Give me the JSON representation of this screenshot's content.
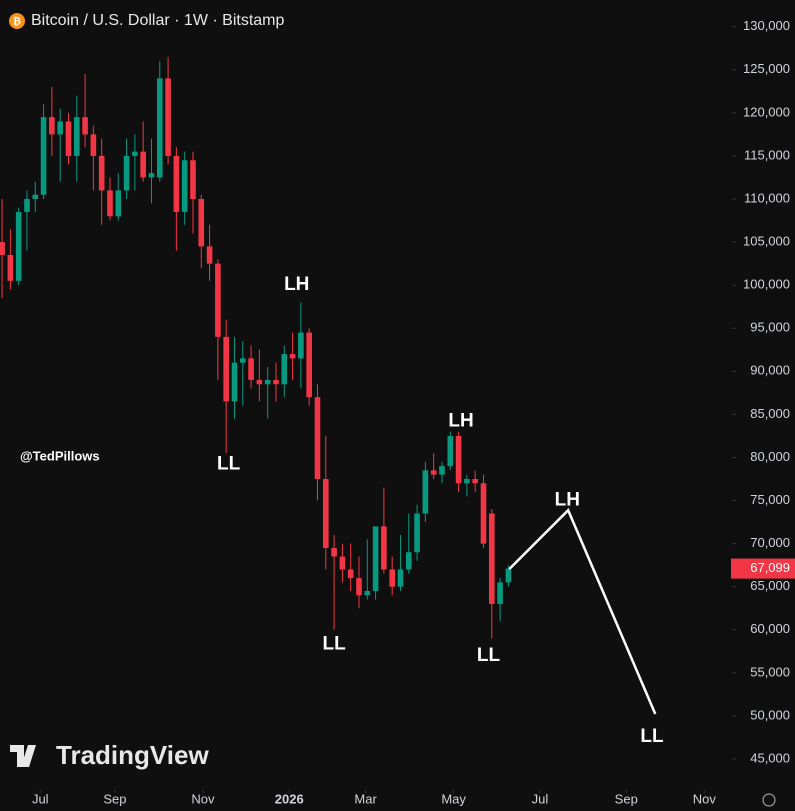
{
  "chart_data": {
    "type": "candlestick",
    "title": "Bitcoin / U.S. Dollar · 1W · Bitstamp",
    "watermark": "@TedPillows",
    "brand": "TradingView",
    "up_color": "#089981",
    "down_color": "#f23645",
    "x": [
      0,
      1,
      2,
      3,
      4,
      5,
      6,
      7,
      8,
      9,
      10,
      11,
      12,
      13,
      14,
      15,
      16,
      17,
      18,
      19,
      20,
      21,
      22,
      23,
      24,
      25,
      26,
      27,
      28,
      29,
      30,
      31,
      32,
      33,
      34,
      35,
      36,
      37,
      38,
      39,
      40,
      41,
      42,
      43,
      44,
      45,
      46,
      47,
      48,
      49,
      50,
      51,
      52,
      53,
      54,
      55,
      56,
      57,
      58,
      59,
      60,
      61
    ],
    "open": [
      105000,
      103500,
      100500,
      108500,
      110000,
      110500,
      119500,
      117500,
      119000,
      115000,
      119500,
      117500,
      115000,
      111000,
      108000,
      111000,
      115000,
      115500,
      112500,
      112500,
      124000,
      115000,
      108500,
      114500,
      110000,
      104500,
      102500,
      94000,
      86500,
      91000,
      91500,
      89000,
      88500,
      89000,
      88500,
      92000,
      91500,
      94500,
      87000,
      77500,
      69500,
      68500,
      67000,
      66000,
      64000,
      64500,
      72000,
      67000,
      65000,
      67000,
      69000,
      73500,
      78500,
      78000,
      79000,
      82500,
      77000,
      77500,
      77000,
      73500,
      63000,
      65500
    ],
    "high": [
      110000,
      106500,
      109000,
      111000,
      112000,
      121000,
      123000,
      120500,
      120000,
      122000,
      124500,
      118500,
      117000,
      112500,
      113000,
      117000,
      117500,
      119000,
      117000,
      126000,
      126500,
      116000,
      115500,
      115500,
      110500,
      107000,
      103000,
      96000,
      94000,
      93500,
      93000,
      92500,
      90500,
      91000,
      93000,
      94500,
      98000,
      95000,
      88500,
      82500,
      71000,
      70000,
      70000,
      68500,
      70500,
      72000,
      76500,
      68500,
      71000,
      73500,
      74500,
      79500,
      80500,
      79500,
      83000,
      83000,
      78000,
      78500,
      78000,
      74000,
      66000,
      67500
    ],
    "low": [
      98500,
      99500,
      100000,
      104000,
      108500,
      110000,
      115000,
      112000,
      114000,
      112000,
      116000,
      111000,
      107000,
      107500,
      107500,
      110000,
      111000,
      112000,
      109500,
      112000,
      114000,
      104000,
      107000,
      106000,
      102000,
      100500,
      89000,
      80500,
      84500,
      86000,
      88000,
      86500,
      84500,
      86500,
      87000,
      89000,
      88000,
      86000,
      75000,
      67000,
      60000,
      65500,
      64500,
      62500,
      63500,
      63500,
      66500,
      64000,
      64500,
      66500,
      68000,
      72500,
      77500,
      77000,
      78500,
      76000,
      75500,
      76000,
      69500,
      59000,
      61000,
      65000
    ],
    "close": [
      103500,
      100500,
      108500,
      110000,
      110500,
      119500,
      117500,
      119000,
      115000,
      119500,
      117500,
      115000,
      111000,
      108000,
      111000,
      115000,
      115500,
      112500,
      113000,
      124000,
      115000,
      108500,
      114500,
      110000,
      104500,
      102500,
      94000,
      86500,
      91000,
      91500,
      89000,
      88500,
      89000,
      88500,
      92000,
      91500,
      94500,
      87000,
      77500,
      69500,
      68500,
      67000,
      66000,
      64000,
      64500,
      72000,
      67000,
      65000,
      67000,
      69000,
      73500,
      78500,
      78000,
      79000,
      82500,
      77000,
      77500,
      77000,
      70000,
      63000,
      65500,
      67099
    ],
    "close_label": "67,099",
    "projection": {
      "x": [
        61.1,
        68.2,
        78.7
      ],
      "y": [
        67036,
        73878,
        50223
      ]
    },
    "annotations": [
      {
        "text": "LH",
        "x": 35.5,
        "y": 100000
      },
      {
        "text": "LL",
        "x": 27.3,
        "y": 79200
      },
      {
        "text": "LH",
        "x": 55.3,
        "y": 84200
      },
      {
        "text": "LL",
        "x": 40.0,
        "y": 58300
      },
      {
        "text": "LL",
        "x": 58.6,
        "y": 56950
      },
      {
        "text": "LH",
        "x": 68.1,
        "y": 75000
      },
      {
        "text": "LL",
        "x": 78.3,
        "y": 47550
      }
    ],
    "xlim": [
      -0.25,
      87.7
    ],
    "xticks": [
      {
        "value": 4.6,
        "label": "Jul"
      },
      {
        "value": 13.6,
        "label": "Sep"
      },
      {
        "value": 24.2,
        "label": "Nov"
      },
      {
        "value": 34.6,
        "label": "2026"
      },
      {
        "value": 43.8,
        "label": "Mar"
      },
      {
        "value": 54.4,
        "label": "May"
      },
      {
        "value": 64.8,
        "label": "Jul"
      },
      {
        "value": 75.2,
        "label": "Sep"
      },
      {
        "value": 84.6,
        "label": "Nov"
      }
    ],
    "ylim": [
      41400,
      133100
    ],
    "yticks": [
      {
        "value": 45000,
        "label": "45,000"
      },
      {
        "value": 50000,
        "label": "50,000"
      },
      {
        "value": 55000,
        "label": "55,000"
      },
      {
        "value": 60000,
        "label": "60,000"
      },
      {
        "value": 65000,
        "label": "65,000"
      },
      {
        "value": 70000,
        "label": "70,000"
      },
      {
        "value": 75000,
        "label": "75,000"
      },
      {
        "value": 80000,
        "label": "80,000"
      },
      {
        "value": 85000,
        "label": "85,000"
      },
      {
        "value": 90000,
        "label": "90,000"
      },
      {
        "value": 95000,
        "label": "95,000"
      },
      {
        "value": 100000,
        "label": "100,000"
      },
      {
        "value": 105000,
        "label": "105,000"
      },
      {
        "value": 110000,
        "label": "110,000"
      },
      {
        "value": 115000,
        "label": "115,000"
      },
      {
        "value": 120000,
        "label": "120,000"
      },
      {
        "value": 125000,
        "label": "125,000"
      },
      {
        "value": 130000,
        "label": "130,000"
      }
    ]
  }
}
